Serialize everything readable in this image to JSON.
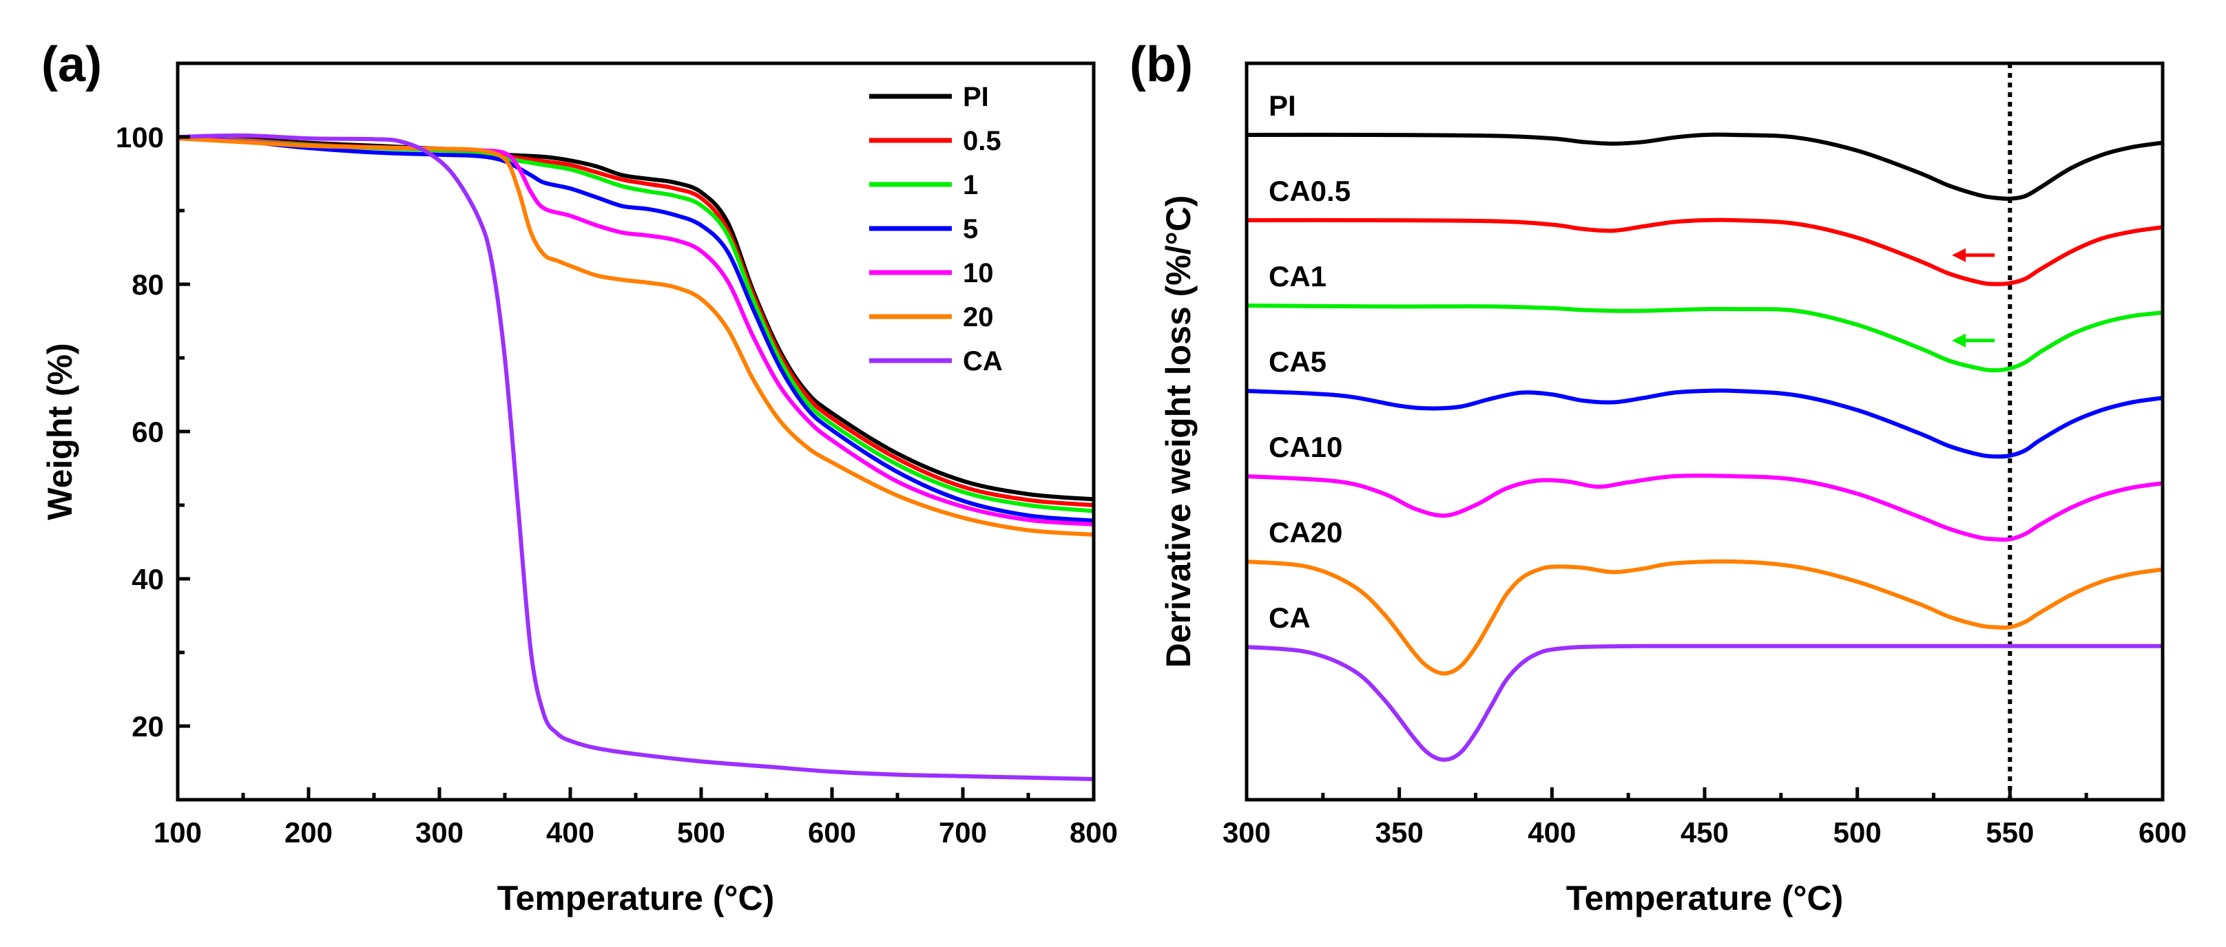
{
  "figure": {
    "panels": [
      "(a)",
      "(b)"
    ]
  },
  "chart_data": [
    {
      "type": "line",
      "panel": "(a)",
      "xlabel": "Temperature (°C)",
      "ylabel": "Weight (%)",
      "xlim": [
        100,
        800
      ],
      "ylim": [
        10,
        110
      ],
      "xticks": [
        100,
        200,
        300,
        400,
        500,
        600,
        700,
        800
      ],
      "yticks": [
        20,
        40,
        60,
        80,
        100
      ],
      "grid": false,
      "legend_position": "top-right",
      "series": [
        {
          "name": "PI",
          "color": "#000000",
          "x": [
            100,
            150,
            200,
            250,
            300,
            330,
            350,
            380,
            400,
            420,
            440,
            460,
            480,
            500,
            520,
            540,
            560,
            580,
            600,
            650,
            700,
            750,
            800
          ],
          "y": [
            100,
            99.8,
            99.2,
            98.8,
            98.4,
            98,
            97.6,
            97.3,
            96.8,
            96,
            94.8,
            94.3,
            93.8,
            92.5,
            88.5,
            79,
            71,
            65.5,
            62.5,
            57,
            53.3,
            51.5,
            50.8
          ]
        },
        {
          "name": "0.5",
          "color": "#ff0000",
          "x": [
            100,
            150,
            200,
            250,
            300,
            330,
            350,
            380,
            400,
            420,
            440,
            460,
            480,
            500,
            520,
            540,
            560,
            580,
            600,
            650,
            700,
            750,
            800
          ],
          "y": [
            100,
            99.6,
            99,
            98.6,
            98.3,
            97.9,
            97.4,
            96.7,
            96.2,
            95.2,
            94.2,
            93.6,
            93,
            91.7,
            87.5,
            78.5,
            70.5,
            65,
            61.8,
            56.3,
            52.5,
            50.7,
            50
          ]
        },
        {
          "name": "1",
          "color": "#00ee00",
          "x": [
            100,
            150,
            200,
            250,
            300,
            330,
            350,
            380,
            400,
            420,
            440,
            460,
            480,
            500,
            520,
            540,
            560,
            580,
            600,
            650,
            700,
            750,
            800
          ],
          "y": [
            100,
            99.5,
            98.9,
            98.5,
            98.2,
            97.8,
            97.1,
            96.2,
            95.6,
            94.5,
            93.3,
            92.6,
            92,
            90.7,
            86.8,
            77.8,
            69.8,
            64.2,
            61,
            55.5,
            51.8,
            50,
            49.2
          ]
        },
        {
          "name": "5",
          "color": "#0000ff",
          "x": [
            100,
            150,
            200,
            250,
            300,
            330,
            350,
            370,
            380,
            400,
            420,
            440,
            460,
            480,
            500,
            520,
            540,
            560,
            580,
            600,
            650,
            700,
            750,
            800
          ],
          "y": [
            100,
            99.4,
            98.5,
            97.9,
            97.6,
            97.4,
            96.7,
            94.8,
            93.8,
            93,
            91.8,
            90.6,
            90.2,
            89.4,
            88,
            84.5,
            76.5,
            68.8,
            63.3,
            60.2,
            54.5,
            50.6,
            48.6,
            47.9
          ]
        },
        {
          "name": "10",
          "color": "#ff00ff",
          "x": [
            100,
            150,
            200,
            250,
            300,
            330,
            350,
            360,
            370,
            380,
            400,
            420,
            440,
            460,
            480,
            500,
            520,
            540,
            560,
            580,
            600,
            650,
            700,
            750,
            800
          ],
          "y": [
            99.8,
            99.4,
            98.8,
            98.6,
            98.4,
            98.2,
            97.8,
            96,
            92.5,
            90.3,
            89.3,
            88,
            87,
            86.6,
            86,
            84.5,
            80.5,
            72.8,
            66.2,
            61.8,
            58.8,
            53.2,
            49.8,
            48,
            47.4
          ]
        },
        {
          "name": "20",
          "color": "#ff8000",
          "x": [
            100,
            150,
            200,
            250,
            300,
            330,
            350,
            360,
            370,
            380,
            390,
            400,
            420,
            440,
            460,
            480,
            500,
            520,
            540,
            560,
            580,
            600,
            650,
            700,
            750,
            800
          ],
          "y": [
            99.8,
            99.3,
            98.8,
            98.6,
            98.4,
            98.2,
            97,
            93,
            87,
            84,
            83.2,
            82.5,
            81.2,
            80.6,
            80.2,
            79.6,
            78,
            74,
            67,
            61.5,
            58,
            55.8,
            51.3,
            48.3,
            46.6,
            46
          ]
        },
        {
          "name": "CA",
          "color": "#9b30ff",
          "x": [
            100,
            150,
            200,
            250,
            270,
            290,
            310,
            330,
            340,
            350,
            360,
            370,
            380,
            390,
            400,
            420,
            450,
            500,
            550,
            600,
            650,
            700,
            750,
            800
          ],
          "y": [
            100,
            100.2,
            99.8,
            99.7,
            99.4,
            98,
            95,
            89,
            83,
            70,
            50,
            30,
            21.5,
            19,
            18,
            17,
            16.2,
            15.2,
            14.5,
            13.8,
            13.4,
            13.2,
            13,
            12.8
          ]
        }
      ]
    },
    {
      "type": "line",
      "panel": "(b)",
      "xlabel": "Temperature (°C)",
      "ylabel": "Derivative weight loss (%/°C)",
      "xlim": [
        300,
        600
      ],
      "xticks": [
        300,
        350,
        400,
        450,
        500,
        550,
        600
      ],
      "y_ticks_shown": false,
      "grid": false,
      "vertical_reference_line": {
        "x": 550,
        "style": "dotted",
        "color": "#000000"
      },
      "series": [
        {
          "name": "PI",
          "color": "#000000",
          "baseline": 0.9,
          "x": [
            300,
            340,
            380,
            400,
            410,
            420,
            430,
            440,
            450,
            460,
            480,
            500,
            520,
            530,
            540,
            545,
            550,
            555,
            560,
            570,
            580,
            590,
            600
          ],
          "y": [
            0,
            0,
            -0.1,
            -0.4,
            -0.8,
            -1,
            -0.8,
            -0.3,
            0,
            0,
            -0.3,
            -1.8,
            -4.3,
            -5.8,
            -6.9,
            -7.2,
            -7.3,
            -7.0,
            -6.0,
            -3.8,
            -2.3,
            -1.4,
            -0.9
          ]
        },
        {
          "name": "CA0.5",
          "color": "#ff0000",
          "baseline": 0.9,
          "x": [
            300,
            340,
            380,
            400,
            410,
            420,
            430,
            440,
            450,
            460,
            480,
            500,
            520,
            530,
            540,
            545,
            550,
            555,
            560,
            570,
            580,
            590,
            600
          ],
          "y": [
            0,
            0,
            -0.1,
            -0.5,
            -1,
            -1.2,
            -0.7,
            -0.2,
            0,
            0,
            -0.4,
            -2,
            -4.6,
            -6.1,
            -7.1,
            -7.3,
            -7.2,
            -6.7,
            -5.6,
            -3.6,
            -2.1,
            -1.3,
            -0.8
          ]
        },
        {
          "name": "CA1",
          "color": "#00ee00",
          "baseline": 0.9,
          "x": [
            300,
            340,
            360,
            380,
            400,
            410,
            420,
            430,
            440,
            450,
            460,
            480,
            500,
            520,
            530,
            540,
            545,
            550,
            555,
            560,
            570,
            580,
            590,
            600
          ],
          "y": [
            0,
            -0.1,
            -0.1,
            -0.1,
            -0.3,
            -0.5,
            -0.6,
            -0.6,
            -0.5,
            -0.4,
            -0.4,
            -0.6,
            -2.2,
            -4.8,
            -6.3,
            -7.2,
            -7.4,
            -7.2,
            -6.5,
            -5.3,
            -3.3,
            -2,
            -1.2,
            -0.8
          ]
        },
        {
          "name": "CA5",
          "color": "#0000ff",
          "baseline": 0.9,
          "x": [
            300,
            330,
            350,
            360,
            370,
            380,
            390,
            400,
            410,
            420,
            430,
            440,
            450,
            460,
            480,
            500,
            520,
            530,
            540,
            545,
            550,
            555,
            560,
            570,
            580,
            590,
            600
          ],
          "y": [
            0,
            -0.5,
            -1.7,
            -2,
            -1.8,
            -0.9,
            -0.2,
            -0.4,
            -1.1,
            -1.3,
            -0.8,
            -0.2,
            0,
            0,
            -0.5,
            -2.2,
            -4.8,
            -6.3,
            -7.3,
            -7.5,
            -7.4,
            -6.8,
            -5.6,
            -3.6,
            -2.2,
            -1.3,
            -0.8
          ]
        },
        {
          "name": "CA10",
          "color": "#ff00ff",
          "baseline": 0.9,
          "x": [
            300,
            330,
            345,
            355,
            365,
            375,
            385,
            395,
            405,
            415,
            425,
            440,
            460,
            480,
            500,
            520,
            530,
            540,
            545,
            550,
            555,
            560,
            570,
            580,
            590,
            600
          ],
          "y": [
            0,
            -0.6,
            -2,
            -3.7,
            -4.5,
            -3.3,
            -1.4,
            -0.5,
            -0.6,
            -1.2,
            -0.7,
            0,
            0,
            -0.4,
            -2,
            -4.6,
            -6,
            -7,
            -7.2,
            -7.2,
            -6.6,
            -5.5,
            -3.6,
            -2.2,
            -1.3,
            -0.8
          ]
        },
        {
          "name": "CA20",
          "color": "#ff8000",
          "baseline": 0.9,
          "x": [
            300,
            320,
            335,
            345,
            355,
            360,
            365,
            370,
            375,
            380,
            385,
            390,
            395,
            400,
            410,
            420,
            430,
            440,
            460,
            480,
            500,
            520,
            530,
            540,
            545,
            550,
            555,
            560,
            570,
            580,
            590,
            600
          ],
          "y": [
            0,
            -0.6,
            -2.8,
            -6,
            -10.5,
            -12.2,
            -12.8,
            -12,
            -9.8,
            -6.8,
            -3.8,
            -1.9,
            -1,
            -0.6,
            -0.7,
            -1.2,
            -0.8,
            -0.2,
            0,
            -0.6,
            -2.3,
            -4.8,
            -6.3,
            -7.3,
            -7.5,
            -7.5,
            -6.9,
            -5.8,
            -3.8,
            -2.3,
            -1.4,
            -0.9
          ]
        },
        {
          "name": "CA",
          "color": "#9b30ff",
          "baseline": 0.9,
          "x": [
            300,
            320,
            335,
            345,
            355,
            360,
            365,
            370,
            375,
            380,
            385,
            390,
            395,
            400,
            410,
            430,
            460,
            500,
            550,
            600
          ],
          "y": [
            0,
            -0.6,
            -2.7,
            -6,
            -10.5,
            -12.3,
            -12.9,
            -12.1,
            -9.8,
            -6.8,
            -3.8,
            -1.9,
            -0.8,
            -0.3,
            0,
            0.1,
            0.1,
            0.1,
            0.1,
            0.1
          ]
        }
      ],
      "annotations": [
        {
          "type": "arrow",
          "series": "CA0.5",
          "direction": "left",
          "color": "#ff0000"
        },
        {
          "type": "arrow",
          "series": "CA1",
          "direction": "left",
          "color": "#00ee00"
        }
      ]
    }
  ]
}
